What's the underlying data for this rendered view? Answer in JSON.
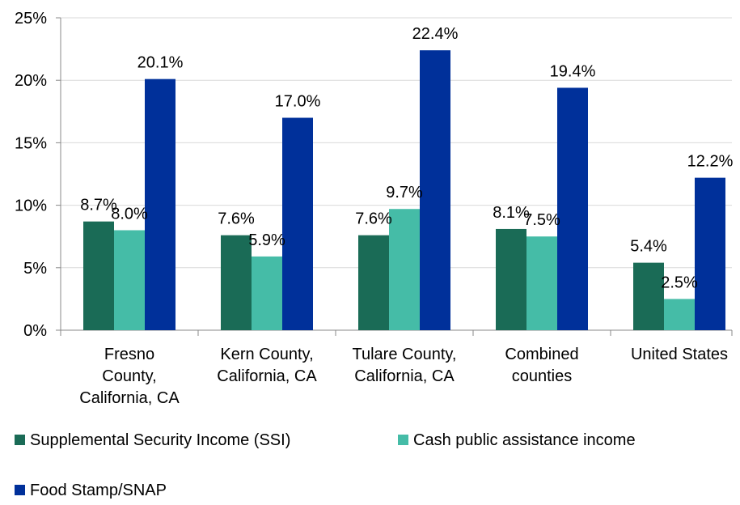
{
  "chart_data": {
    "type": "bar",
    "title": "",
    "xlabel": "",
    "ylabel": "",
    "ylim": [
      0,
      25
    ],
    "yticks": [
      "0%",
      "5%",
      "10%",
      "15%",
      "20%",
      "25%"
    ],
    "grid": true,
    "legend_position": "bottom",
    "categories": [
      [
        "Fresno",
        "County,",
        "California, CA"
      ],
      [
        "Kern County,",
        "California, CA"
      ],
      [
        "Tulare County,",
        "California, CA"
      ],
      [
        "Combined",
        "counties"
      ],
      [
        "United States"
      ]
    ],
    "series": [
      {
        "name": "Supplemental Security Income (SSI)",
        "color": "#1a6b56",
        "values": [
          8.7,
          7.6,
          7.6,
          8.1,
          5.4
        ],
        "labels": [
          "8.7%",
          "7.6%",
          "7.6%",
          "8.1%",
          "5.4%"
        ]
      },
      {
        "name": "Cash public assistance income",
        "color": "#45bca7",
        "values": [
          8.0,
          5.9,
          9.7,
          7.5,
          2.5
        ],
        "labels": [
          "8.0%",
          "5.9%",
          "9.7%",
          "7.5%",
          "2.5%"
        ]
      },
      {
        "name": "Food Stamp/SNAP",
        "color": "#00309a",
        "values": [
          20.1,
          17.0,
          22.4,
          19.4,
          12.2
        ],
        "labels": [
          "20.1%",
          "17.0%",
          "22.4%",
          "19.4%",
          "12.2%"
        ]
      }
    ]
  }
}
